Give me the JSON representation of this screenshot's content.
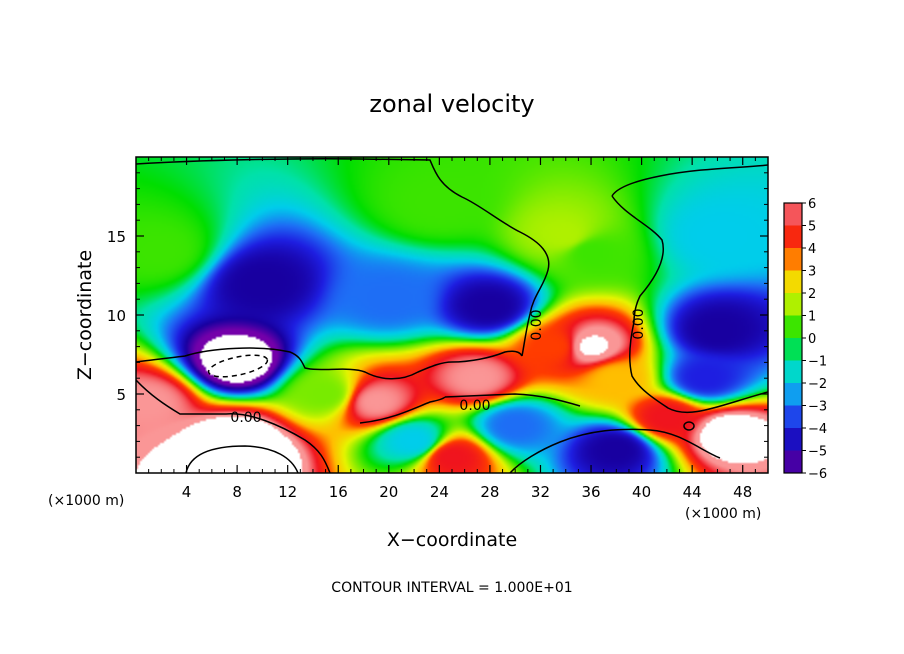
{
  "chart_data": {
    "type": "heatmap",
    "title": "zonal velocity",
    "xlabel": "X−coordinate",
    "ylabel": "Z−coordinate",
    "x_unit_left": "(×1000 m)",
    "x_unit_right": "(×1000 m)",
    "xlim": [
      0,
      50
    ],
    "ylim": [
      0,
      20
    ],
    "x_ticks": [
      4,
      8,
      12,
      16,
      20,
      24,
      28,
      32,
      36,
      40,
      44,
      48
    ],
    "y_ticks": [
      5,
      10,
      15
    ],
    "colorbar": {
      "ticks": [
        6,
        5,
        4,
        3,
        2,
        1,
        0,
        -1,
        -2,
        -3,
        -4,
        -5,
        -6
      ],
      "tick_labels": [
        "6",
        "5",
        "4",
        "3",
        "2",
        "1",
        "0",
        "−1",
        "−2",
        "−3",
        "−4",
        "−5",
        "−6"
      ]
    },
    "contour_labels": [
      "0.00",
      "0.00",
      "0.00",
      "0.00"
    ],
    "footer": "CONTOUR INTERVAL = 1.000E+01",
    "field_features": [
      {
        "x": 2,
        "z": 14,
        "value": 0.5
      },
      {
        "x": 10,
        "z": 12,
        "value": -5
      },
      {
        "x": 8,
        "z": 7,
        "value": -7
      },
      {
        "x": 20,
        "z": 11,
        "value": -3
      },
      {
        "x": 28,
        "z": 10.5,
        "value": -5
      },
      {
        "x": 34,
        "z": 15,
        "value": 1.5
      },
      {
        "x": 36,
        "z": 14,
        "value": 0.5
      },
      {
        "x": 36,
        "z": 8,
        "value": 6.5
      },
      {
        "x": 33,
        "z": 8,
        "value": 4
      },
      {
        "x": 38,
        "z": 6,
        "value": 3
      },
      {
        "x": 46,
        "z": 9,
        "value": -5
      },
      {
        "x": 46,
        "z": 15,
        "value": -2
      },
      {
        "x": 8,
        "z": 2,
        "value": 7
      },
      {
        "x": 8,
        "z": 1,
        "value": 8
      },
      {
        "x": 1,
        "z": 4.5,
        "value": 6
      },
      {
        "x": 19,
        "z": 4.5,
        "value": 6
      },
      {
        "x": 27,
        "z": 6,
        "value": 6
      },
      {
        "x": 25,
        "z": 1,
        "value": 5
      },
      {
        "x": 30,
        "z": 3,
        "value": -3
      },
      {
        "x": 38,
        "z": 1.5,
        "value": -5
      },
      {
        "x": 42,
        "z": 3.5,
        "value": 5
      },
      {
        "x": 47,
        "z": 2.5,
        "value": 7
      },
      {
        "x": 22,
        "z": 2,
        "value": -2
      },
      {
        "x": 15,
        "z": 5,
        "value": 1
      },
      {
        "x": 45,
        "z": 6,
        "value": -4
      },
      {
        "x": 24,
        "z": 17,
        "value": 0.5
      }
    ]
  }
}
